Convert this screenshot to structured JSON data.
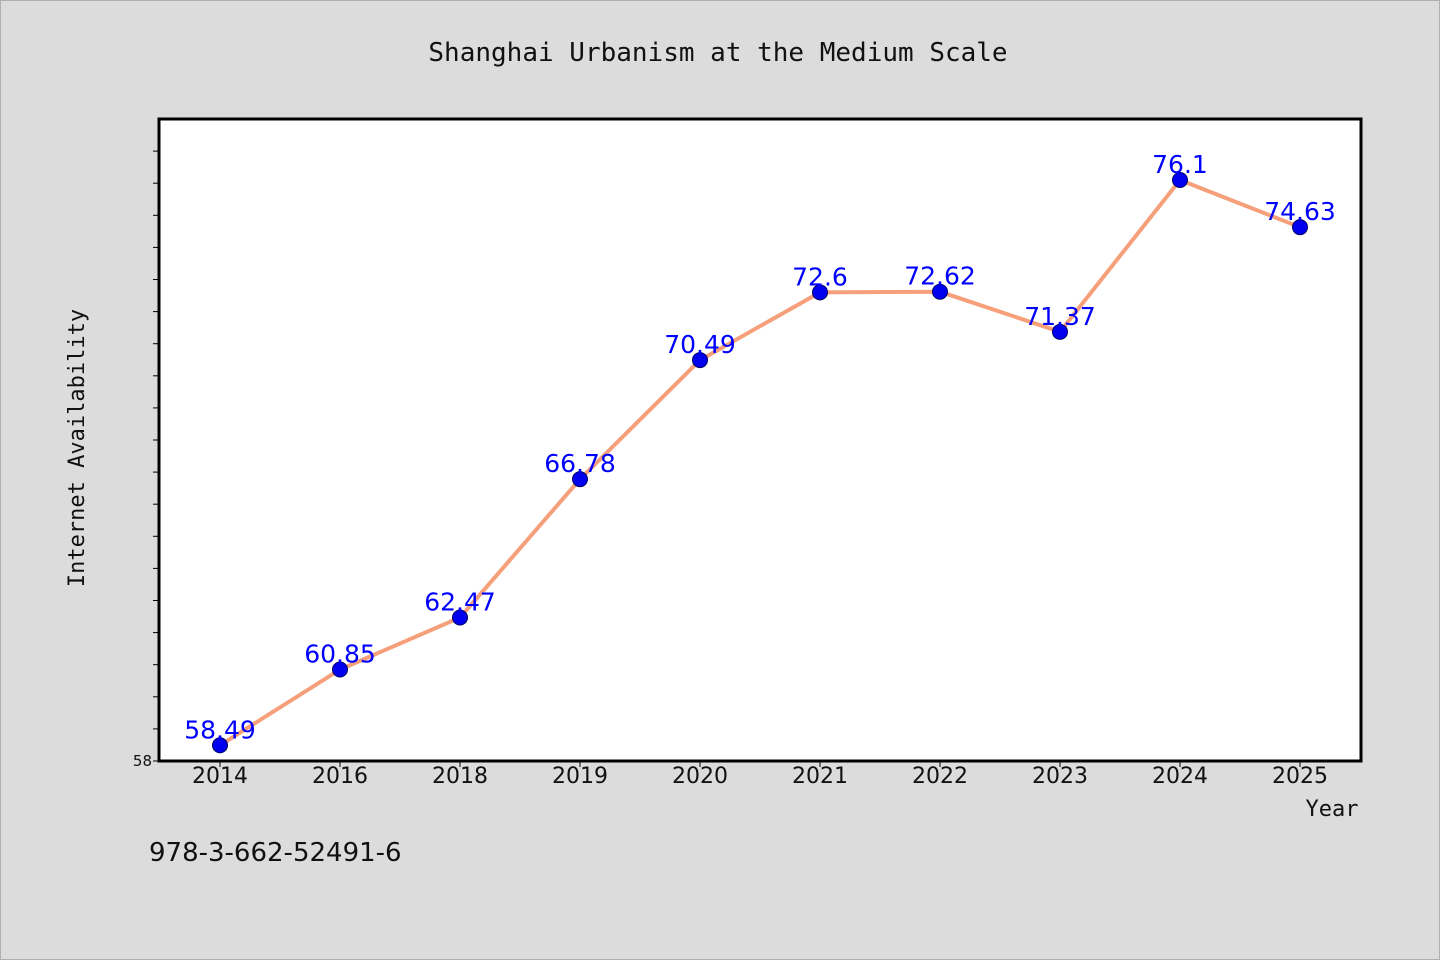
{
  "chart_data": {
    "type": "line",
    "title": "Shanghai Urbanism at the Medium Scale",
    "xlabel": "Year",
    "ylabel": "Internet Availability",
    "categories": [
      "2014",
      "2016",
      "2018",
      "2019",
      "2020",
      "2021",
      "2022",
      "2023",
      "2024",
      "2025"
    ],
    "series": [
      {
        "values": [
          58.49,
          60.85,
          62.47,
          66.78,
          70.49,
          72.6,
          72.62,
          71.37,
          76.1,
          74.63
        ]
      }
    ],
    "data_labels": [
      "58.49",
      "60.85",
      "62.47",
      "66.78",
      "70.49",
      "72.6",
      "72.62",
      "71.37",
      "76.1",
      "74.63"
    ],
    "ylim": [
      58,
      78
    ],
    "yticks": [
      "58"
    ],
    "grid": false,
    "legend": "none",
    "colors": {
      "line": "#f5a07a",
      "marker": "#0000ee",
      "marker_edge": "#000066",
      "data_label": "#0000ff",
      "background": "#dcdcdc",
      "plot_background": "#ffffff"
    }
  },
  "footer": {
    "isbn": "978-3-662-52491-6"
  }
}
